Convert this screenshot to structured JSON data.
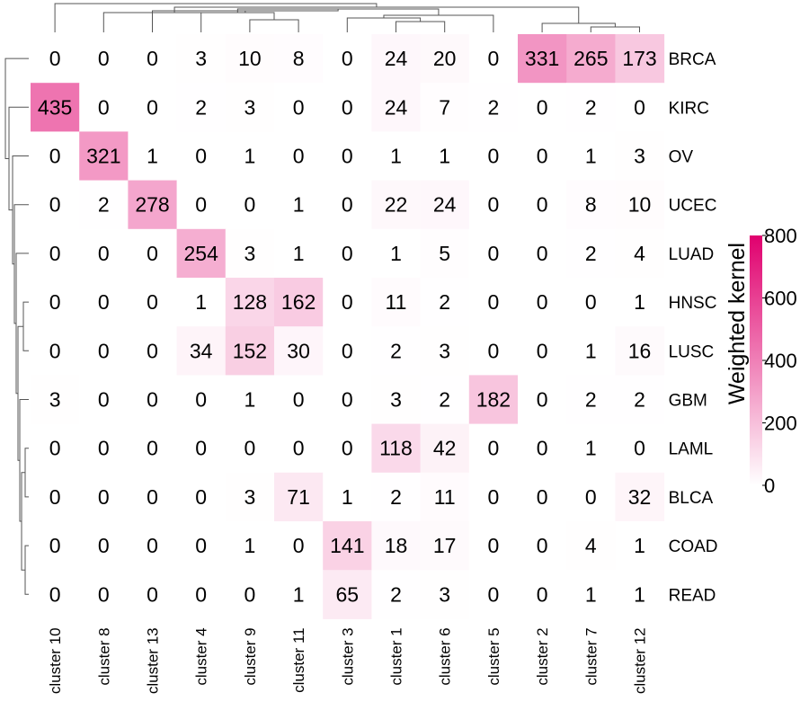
{
  "chart_data": {
    "type": "heatmap",
    "rows": [
      "BRCA",
      "KIRC",
      "OV",
      "UCEC",
      "LUAD",
      "HNSC",
      "LUSC",
      "GBM",
      "LAML",
      "BLCA",
      "COAD",
      "READ"
    ],
    "columns": [
      "cluster 10",
      "cluster 8",
      "cluster 13",
      "cluster 4",
      "cluster 9",
      "cluster 11",
      "cluster 3",
      "cluster 1",
      "cluster 6",
      "cluster 5",
      "cluster 2",
      "cluster 7",
      "cluster 12"
    ],
    "values": [
      [
        0,
        0,
        0,
        3,
        10,
        8,
        0,
        24,
        20,
        0,
        331,
        265,
        173
      ],
      [
        435,
        0,
        0,
        2,
        3,
        0,
        0,
        24,
        7,
        2,
        0,
        2,
        0
      ],
      [
        0,
        321,
        1,
        0,
        1,
        0,
        0,
        1,
        1,
        0,
        0,
        1,
        3
      ],
      [
        0,
        2,
        278,
        0,
        0,
        1,
        0,
        22,
        24,
        0,
        0,
        8,
        10
      ],
      [
        0,
        0,
        0,
        254,
        3,
        1,
        0,
        1,
        5,
        0,
        0,
        2,
        4
      ],
      [
        0,
        0,
        0,
        1,
        128,
        162,
        0,
        11,
        2,
        0,
        0,
        0,
        1
      ],
      [
        0,
        0,
        0,
        34,
        152,
        30,
        0,
        2,
        3,
        0,
        0,
        1,
        16
      ],
      [
        3,
        0,
        0,
        0,
        1,
        0,
        0,
        3,
        2,
        182,
        0,
        2,
        2
      ],
      [
        0,
        0,
        0,
        0,
        0,
        0,
        0,
        118,
        42,
        0,
        0,
        1,
        0
      ],
      [
        0,
        0,
        0,
        0,
        3,
        71,
        1,
        2,
        11,
        0,
        0,
        0,
        32
      ],
      [
        0,
        0,
        0,
        0,
        1,
        0,
        141,
        18,
        17,
        0,
        0,
        4,
        1
      ],
      [
        0,
        0,
        0,
        0,
        0,
        1,
        65,
        2,
        3,
        0,
        0,
        1,
        1
      ]
    ],
    "colorscale": {
      "min": 0,
      "max": 800,
      "low_color": "#ffffff",
      "high_color": "#e0006e"
    },
    "legend": {
      "title": "Weighted kernel",
      "ticks": [
        0,
        200,
        400,
        600,
        800
      ],
      "placement": "right"
    },
    "dendrograms": {
      "rows": true,
      "columns": true
    }
  }
}
